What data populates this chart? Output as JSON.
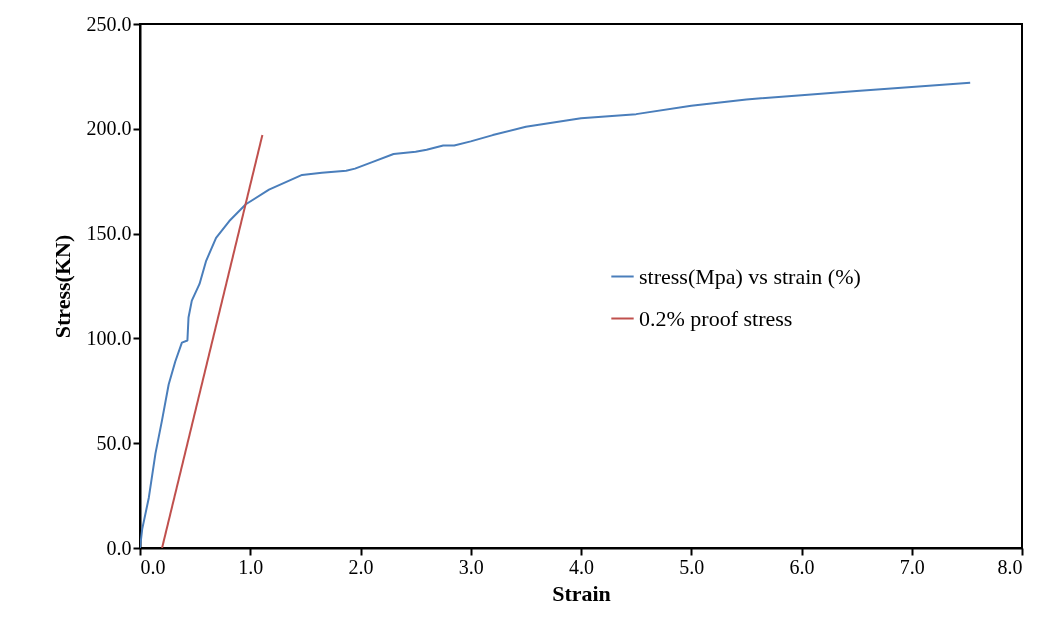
{
  "chart_data": {
    "type": "line",
    "xlabel": "Strain",
    "ylabel": "Stress(KN)",
    "xlim": [
      0,
      8
    ],
    "ylim": [
      0,
      250
    ],
    "xticks": [
      {
        "value": 0,
        "label": "0.0"
      },
      {
        "value": 1,
        "label": "1.0"
      },
      {
        "value": 2,
        "label": "2.0"
      },
      {
        "value": 3,
        "label": "3.0"
      },
      {
        "value": 4,
        "label": "4.0"
      },
      {
        "value": 5,
        "label": "5.0"
      },
      {
        "value": 6,
        "label": "6.0"
      },
      {
        "value": 7,
        "label": "7.0"
      },
      {
        "value": 8,
        "label": "8.0"
      }
    ],
    "yticks": [
      {
        "value": 0,
        "label": "0.0"
      },
      {
        "value": 50,
        "label": "50.0"
      },
      {
        "value": 100,
        "label": "100.0"
      },
      {
        "value": 150,
        "label": "150.0"
      },
      {
        "value": 200,
        "label": "200.0"
      },
      {
        "value": 250,
        "label": "250.0"
      }
    ],
    "grid": false,
    "legend": "right",
    "marker": "none",
    "line_style": "solid",
    "series": [
      {
        "name": "stress(Mpa) vs strain (%)",
        "color": "#4a7ebb",
        "x": [
          0,
          0.02,
          0.08,
          0.14,
          0.2,
          0.26,
          0.32,
          0.38,
          0.43,
          0.44,
          0.47,
          0.54,
          0.6,
          0.69,
          0.81,
          0.96,
          1.17,
          1.47,
          1.65,
          1.87,
          1.95,
          2.1,
          2.3,
          2.5,
          2.6,
          2.75,
          2.85,
          3.0,
          3.2,
          3.5,
          4.0,
          4.5,
          5.0,
          5.5,
          6.0,
          6.5,
          7.0,
          7.53
        ],
        "values": [
          0,
          9,
          24,
          45,
          61,
          78,
          89,
          98,
          99,
          110,
          118,
          126,
          137,
          148,
          156,
          164,
          171,
          178,
          179,
          180,
          181,
          184,
          188,
          189,
          190,
          192,
          192,
          194,
          197,
          201,
          205,
          207,
          211,
          214,
          216,
          218,
          220,
          222
        ]
      },
      {
        "name": "0.2% proof stress",
        "color": "#c0504d",
        "x": [
          0.2,
          1.11
        ],
        "values": [
          0,
          197
        ]
      }
    ]
  }
}
